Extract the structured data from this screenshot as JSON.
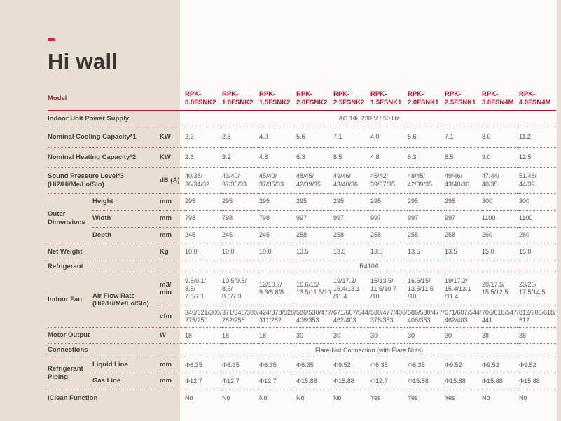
{
  "page": {
    "title": "Hi wall"
  },
  "colors": {
    "accent_red": "#bf1233",
    "background_beige": "#e6dfd2",
    "panel_white": "#fcfbf7",
    "label_text": "#474139",
    "value_text": "#56565c"
  },
  "table": {
    "model_label": "Model",
    "models": [
      "RPK-\n0.8FSNK2",
      "RPK-\n1.0FSNK2",
      "RPK-\n1.5FSNK2",
      "RPK-\n2.0FSNK2",
      "RPK-\n2.5FSNK2",
      "RPK-\n1.5FSNK1",
      "RPK-\n2.0FSNK1",
      "RPK-\n2.5FSNK1",
      "RPK-\n3.0FSN4M",
      "RPK-\n4.0FSN4M"
    ],
    "power_supply": {
      "label": "Indoor Unit Power Supply",
      "value": "AC 1Φ, 230 V / 50 Hz"
    },
    "cooling": {
      "label": "Nominal Cooling Capacity*1",
      "unit": "KW",
      "values": [
        "2.2",
        "2.8",
        "4.0",
        "5.6",
        "7.1",
        "4.0",
        "5.6",
        "7.1",
        "8.0",
        "11.2"
      ]
    },
    "heating": {
      "label": "Nominal Heating Capacity*2",
      "unit": "KW",
      "values": [
        "2.6",
        "3.2",
        "4.8",
        "6.3",
        "8.5",
        "4.8",
        "6.3",
        "8.5",
        "9.0",
        "12.5"
      ]
    },
    "sound": {
      "label": "Sound Pressure Level*3 (Hi2/Hi/Me/Lo/Slo)",
      "unit": "dB (A)",
      "values": [
        "40/38/\n36/34/32",
        "43/40/\n37/35/33",
        "45/40/\n37/35/33",
        "48/45/\n42/39/35",
        "49/46/\n43/40/36",
        "45/42/\n39/37/35",
        "48/45/\n42/39/35",
        "49/46/\n43/40/36",
        "47/44/\n40/35",
        "51/48/\n44/39"
      ]
    },
    "dimensions": {
      "group": "Outer Dimensions",
      "height": {
        "label": "Height",
        "unit": "mm",
        "values": [
          "295",
          "295",
          "295",
          "295",
          "295",
          "295",
          "295",
          "295",
          "300",
          "300"
        ]
      },
      "width": {
        "label": "Width",
        "unit": "mm",
        "values": [
          "798",
          "798",
          "798",
          "997",
          "997",
          "997",
          "997",
          "997",
          "1100",
          "1100"
        ]
      },
      "depth": {
        "label": "Depth",
        "unit": "mm",
        "values": [
          "245",
          "245",
          "245",
          "258",
          "258",
          "258",
          "258",
          "258",
          "260",
          "260"
        ]
      }
    },
    "net_weight": {
      "label": "Net Weight",
      "unit": "Kg",
      "values": [
        "10.0",
        "10.0",
        "10.0",
        "13.5",
        "13.5",
        "13.5",
        "13.5",
        "13.5",
        "15.0",
        "15.0"
      ]
    },
    "refrigerant": {
      "label": "Refrigerant",
      "value": "R410A"
    },
    "fan": {
      "group": "Indoor Fan",
      "sub": "Air Flow Rate (Hi2/Hi/Me/Lo/Slo)",
      "m3min": {
        "unit": "m3/\nmin",
        "values": [
          "9.8/9.1/\n8.5/\n7.8/7.1",
          "10.5/9.8/\n8.5/\n8.0/7.3",
          "12/10.7/\n9.3/8.8/8",
          "16.6/15/\n13.5/11.5/10",
          "19/17.2/\n15.4/13.1\n/11.4",
          "15/13.5/\n11.5/10.7\n/10",
          "16.6/15/\n13.5/11.5\n/10",
          "19/17.2/\n15.4/13.1\n/11.4",
          "20/17.5/\n15.5/12.5",
          "23/20/\n17.5/14.5"
        ]
      },
      "cfm": {
        "unit": "cfm",
        "values": [
          "346/321/300/\n275/250",
          "371/346/300/\n282/258",
          "424/378/328/\n311/282",
          "586/530/477/\n406/353",
          "671/607/544/\n462/403",
          "530/477/406/\n378/353",
          "586/530/477/\n406/353",
          "671/607/544/\n462/403",
          "706/618/547/\n441",
          "812/706/618/\n512"
        ]
      }
    },
    "motor": {
      "label": "Motor Output",
      "unit": "W",
      "values": [
        "18",
        "18",
        "18",
        "30",
        "30",
        "30",
        "30",
        "30",
        "38",
        "38"
      ]
    },
    "connections": {
      "label": "Connections",
      "value": "Flare-Nut Connection (with Flare Nuts)"
    },
    "piping": {
      "group": "Refrigerant Piping",
      "liquid": {
        "label": "Liquid Line",
        "unit": "mm",
        "values": [
          "Φ6.35",
          "Φ6.35",
          "Φ6.35",
          "Φ6.35",
          "Φ9.52",
          "Φ6.35",
          "Φ6.35",
          "Φ9.52",
          "Φ9.52",
          "Φ9.52"
        ]
      },
      "gas": {
        "label": "Gas Line",
        "unit": "mm",
        "values": [
          "Φ12.7",
          "Φ12.7",
          "Φ12.7",
          "Φ15.88",
          "Φ15.88",
          "Φ12.7",
          "Φ15.88",
          "Φ15.88",
          "Φ15.88",
          "Φ15.88"
        ]
      }
    },
    "iclean": {
      "label": "iClean Function",
      "values": [
        "No",
        "No",
        "No",
        "No",
        "No",
        "Yes",
        "Yes",
        "Yes",
        "No",
        "No"
      ]
    }
  }
}
